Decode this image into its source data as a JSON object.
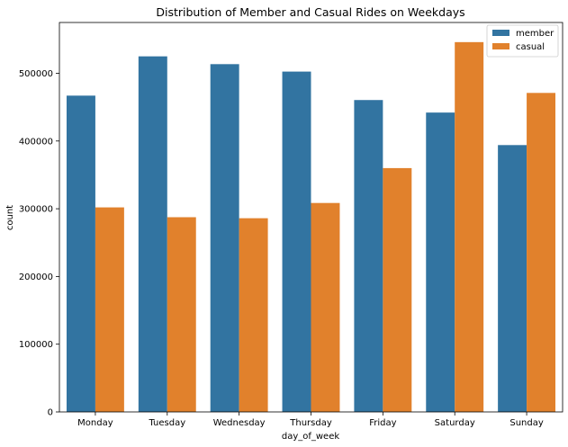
{
  "chart_data": {
    "type": "bar",
    "title": "Distribution of Member and Casual Rides on Weekdays",
    "xlabel": "day_of_week",
    "ylabel": "count",
    "categories": [
      "Monday",
      "Tuesday",
      "Wednesday",
      "Thursday",
      "Friday",
      "Saturday",
      "Sunday"
    ],
    "series": [
      {
        "name": "member",
        "color": "#3274a1",
        "values": [
          467000,
          525000,
          513500,
          502500,
          460500,
          442000,
          394000
        ]
      },
      {
        "name": "casual",
        "color": "#e1812c",
        "values": [
          302000,
          287500,
          286000,
          308500,
          360000,
          546000,
          471000
        ]
      }
    ],
    "ylim": [
      0,
      575000
    ],
    "yticks": [
      0,
      100000,
      200000,
      300000,
      400000,
      500000
    ],
    "ytick_labels": [
      "0",
      "100000",
      "200000",
      "300000",
      "400000",
      "500000"
    ],
    "grid": false,
    "legend_position": "top-right"
  }
}
